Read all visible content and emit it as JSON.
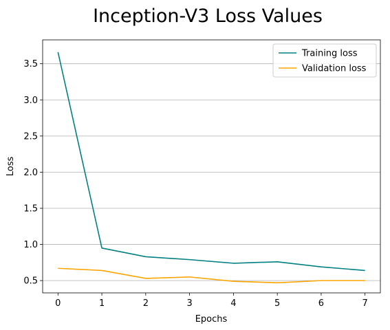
{
  "chart_data": {
    "type": "line",
    "title": "Inception-V3 Loss Values",
    "xlabel": "Epochs",
    "ylabel": "Loss",
    "x": [
      0,
      1,
      2,
      3,
      4,
      5,
      6,
      7
    ],
    "xlim": [
      -0.35,
      7.35
    ],
    "ylim": [
      0.33,
      3.83
    ],
    "xticks": [
      0,
      1,
      2,
      3,
      4,
      5,
      6,
      7
    ],
    "yticks": [
      0.5,
      1.0,
      1.5,
      2.0,
      2.5,
      3.0,
      3.5
    ],
    "ytick_labels": [
      "0.5",
      "1.0",
      "1.5",
      "2.0",
      "2.5",
      "3.0",
      "3.5"
    ],
    "grid": "y",
    "legend_position": "top-right",
    "series": [
      {
        "name": "Training loss",
        "color": "#008080",
        "values": [
          3.66,
          0.95,
          0.83,
          0.79,
          0.74,
          0.76,
          0.69,
          0.64
        ]
      },
      {
        "name": "Validation loss",
        "color": "#FFA500",
        "values": [
          0.67,
          0.64,
          0.53,
          0.55,
          0.49,
          0.47,
          0.5,
          0.5
        ]
      }
    ]
  }
}
